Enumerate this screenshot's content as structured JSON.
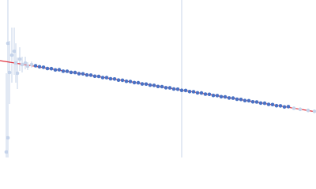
{
  "chart_data": {
    "type": "scatter",
    "xlim": [
      0,
      400
    ],
    "ylim": [
      0,
      200
    ],
    "reference_x": 230,
    "reference_color": "#c8d4ea",
    "fit": {
      "color": "#e0303b",
      "x": [
        0,
        400
      ],
      "values": [
        123,
        58
      ]
    },
    "series": [
      {
        "color": "#c5d3ea",
        "x": [
          8,
          10,
          10,
          12,
          15,
          18,
          20,
          22,
          25,
          28,
          32,
          35,
          40
        ],
        "values": [
          7,
          145,
          25,
          108,
          130,
          135,
          120,
          107,
          125,
          118,
          120,
          116,
          118
        ],
        "errors": [
          100,
          60,
          90,
          40,
          35,
          30,
          25,
          20,
          15,
          10,
          8,
          5,
          4
        ]
      },
      {
        "color": "#4a72c4",
        "x": [
          45,
          50,
          55,
          60,
          65,
          70,
          75,
          80,
          85,
          90,
          95,
          100,
          105,
          110,
          115,
          120,
          125,
          130,
          135,
          140,
          145,
          150,
          155,
          160,
          165,
          170,
          175,
          180,
          185,
          190,
          195,
          200,
          205,
          210,
          215,
          220,
          225,
          230,
          235,
          240,
          245,
          250,
          255,
          260,
          265,
          270,
          275,
          280,
          285,
          290,
          295,
          300,
          305,
          310,
          315,
          320,
          325,
          330,
          335,
          340,
          345,
          350,
          355,
          360,
          365
        ],
        "values": [
          116.5,
          115.2,
          114.6,
          113.0,
          112.8,
          111.2,
          111.4,
          109.6,
          109.5,
          108.1,
          107.9,
          106.4,
          106.2,
          104.8,
          104.6,
          103.2,
          103.0,
          101.5,
          101.4,
          100.0,
          99.7,
          98.3,
          98.1,
          96.8,
          96.5,
          95.1,
          94.9,
          93.4,
          93.2,
          91.9,
          91.6,
          90.2,
          90.0,
          88.6,
          88.4,
          87.0,
          86.7,
          85.3,
          85.1,
          83.7,
          83.5,
          82.1,
          81.9,
          80.5,
          80.2,
          78.8,
          78.6,
          77.2,
          77.0,
          75.6,
          75.4,
          74.0,
          73.7,
          72.3,
          72.1,
          70.7,
          70.5,
          69.1,
          68.9,
          67.5,
          67.2,
          65.8,
          65.6,
          64.2,
          64.6
        ]
      },
      {
        "color": "#c5d3ea",
        "x": [
          372,
          380,
          390,
          398
        ],
        "values": [
          62.5,
          61.2,
          59.8,
          58.6
        ]
      }
    ]
  }
}
